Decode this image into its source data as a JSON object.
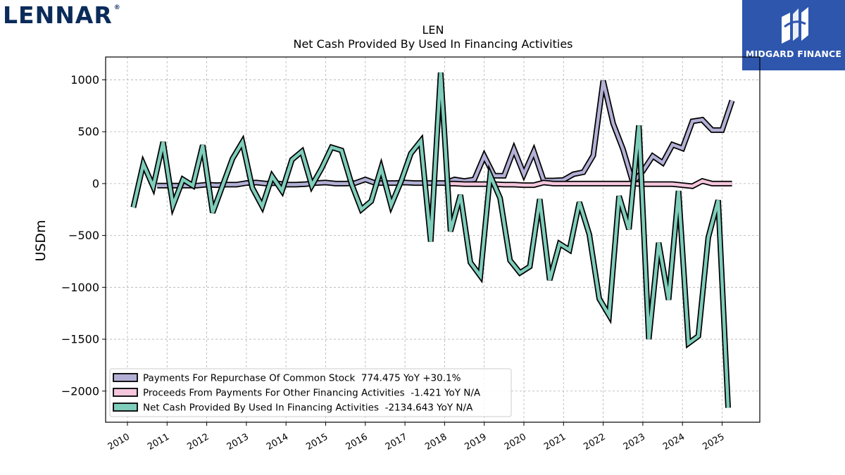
{
  "brand": {
    "logo_text": "LENNAR",
    "logo_mark": "®"
  },
  "sponsor": {
    "label": "MIDGARD FINANCE"
  },
  "chart_data": {
    "type": "line",
    "title": "LEN",
    "subtitle": "Net Cash Provided By Used In Financing Activities",
    "ylabel": "USDm",
    "xlabel": "",
    "ylim": [
      -2300,
      1220
    ],
    "xlim": [
      2009.45,
      2025.95
    ],
    "yticks": [
      1000,
      500,
      0,
      -500,
      -1000,
      -1500,
      -2000
    ],
    "ytick_labels": [
      "1000",
      "500",
      "0",
      "−500",
      "−1000",
      "−1500",
      "−2000"
    ],
    "xticks": [
      2010,
      2011,
      2012,
      2013,
      2014,
      2015,
      2016,
      2017,
      2018,
      2019,
      2020,
      2021,
      2022,
      2023,
      2024,
      2025
    ],
    "xtick_labels": [
      "2010",
      "2011",
      "2012",
      "2013",
      "2014",
      "2015",
      "2016",
      "2017",
      "2018",
      "2019",
      "2020",
      "2021",
      "2022",
      "2023",
      "2024",
      "2025"
    ],
    "grid": true,
    "legend_position": "lower-left",
    "series": [
      {
        "name": "Payments For Repurchase Of Common Stock  774.475 YoY +30.1%",
        "color": "#b3b0d6",
        "x": [
          2010.75,
          2011.0,
          2011.25,
          2011.5,
          2011.75,
          2012.0,
          2012.25,
          2012.5,
          2012.75,
          2013.0,
          2013.25,
          2013.5,
          2013.75,
          2014.0,
          2014.25,
          2014.5,
          2014.75,
          2015.0,
          2015.25,
          2015.5,
          2015.75,
          2016.0,
          2016.25,
          2016.5,
          2016.75,
          2017.0,
          2017.25,
          2017.5,
          2017.75,
          2018.0,
          2018.25,
          2018.5,
          2018.75,
          2019.0,
          2019.25,
          2019.5,
          2019.75,
          2020.0,
          2020.25,
          2020.5,
          2020.75,
          2021.0,
          2021.25,
          2021.5,
          2021.75,
          2022.0,
          2022.25,
          2022.5,
          2022.75,
          2023.0,
          2023.25,
          2023.5,
          2023.75,
          2024.0,
          2024.25,
          2024.5,
          2024.75,
          2025.0,
          2025.25
        ],
        "y": [
          -20,
          -20,
          -20,
          -20,
          -20,
          -10,
          -15,
          -10,
          -10,
          5,
          10,
          0,
          5,
          -10,
          -10,
          -5,
          5,
          10,
          0,
          0,
          5,
          40,
          5,
          5,
          5,
          10,
          5,
          5,
          5,
          5,
          40,
          25,
          40,
          265,
          75,
          75,
          330,
          90,
          310,
          30,
          30,
          35,
          90,
          110,
          270,
          990,
          580,
          330,
          10,
          120,
          265,
          200,
          375,
          340,
          600,
          615,
          515,
          515,
          800
        ]
      },
      {
        "name": "Proceeds From Payments For Other Financing Activities  -1.421 YoY N/A",
        "color": "#f5c6dc",
        "x": [
          2018.0,
          2018.25,
          2018.5,
          2018.75,
          2019.0,
          2019.25,
          2019.5,
          2019.75,
          2020.0,
          2020.25,
          2020.5,
          2020.75,
          2021.0,
          2021.25,
          2021.5,
          2021.75,
          2022.0,
          2022.25,
          2022.5,
          2022.75,
          2023.0,
          2023.25,
          2023.5,
          2023.75,
          2024.0,
          2024.25,
          2024.5,
          2024.75,
          2025.0,
          2025.25
        ],
        "y": [
          0,
          0,
          -5,
          -5,
          -5,
          -5,
          -10,
          -10,
          -15,
          -15,
          10,
          0,
          0,
          0,
          0,
          0,
          0,
          0,
          0,
          0,
          -5,
          -5,
          -5,
          -5,
          -15,
          -25,
          25,
          0,
          0,
          0
        ]
      },
      {
        "name": "Net Cash Provided By Used In Financing Activities  -2134.643 YoY N/A",
        "color": "#7fcdbb",
        "x": [
          2010.15,
          2010.4,
          2010.65,
          2010.9,
          2011.15,
          2011.4,
          2011.65,
          2011.9,
          2012.15,
          2012.4,
          2012.65,
          2012.9,
          2013.15,
          2013.4,
          2013.65,
          2013.9,
          2014.15,
          2014.4,
          2014.65,
          2014.9,
          2015.15,
          2015.4,
          2015.65,
          2015.9,
          2016.15,
          2016.4,
          2016.65,
          2016.9,
          2017.15,
          2017.4,
          2017.65,
          2017.9,
          2018.15,
          2018.4,
          2018.65,
          2018.9,
          2019.15,
          2019.4,
          2019.65,
          2019.9,
          2020.15,
          2020.4,
          2020.65,
          2020.9,
          2021.15,
          2021.4,
          2021.65,
          2021.9,
          2022.15,
          2022.4,
          2022.65,
          2022.9,
          2023.15,
          2023.4,
          2023.65,
          2023.9,
          2024.15,
          2024.4,
          2024.65,
          2024.9,
          2025.15
        ],
        "y": [
          -230,
          190,
          -30,
          400,
          -210,
          40,
          -20,
          370,
          -280,
          -20,
          240,
          400,
          -40,
          -220,
          70,
          -70,
          230,
          310,
          -20,
          150,
          350,
          320,
          0,
          -250,
          -170,
          150,
          -210,
          20,
          290,
          410,
          -560,
          1070,
          -460,
          -110,
          -760,
          -890,
          80,
          -140,
          -740,
          -860,
          -800,
          -150,
          -930,
          -580,
          -640,
          -180,
          -490,
          -1110,
          -1270,
          -120,
          -440,
          560,
          -1500,
          -570,
          -1120,
          -70,
          -1540,
          -1470,
          -520,
          -160,
          -2160
        ]
      }
    ]
  }
}
